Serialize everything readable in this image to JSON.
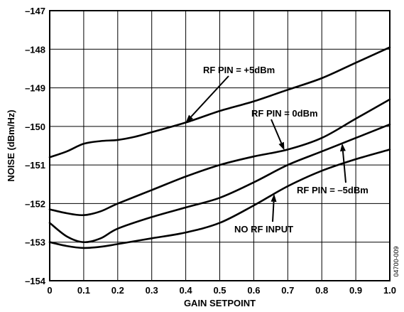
{
  "chart_data": {
    "type": "line",
    "xlabel": "GAIN SETPOINT",
    "ylabel": "NOISE (dBm/Hz)",
    "xlim": [
      0,
      1.0
    ],
    "ylim": [
      -154,
      -147
    ],
    "x_ticks": [
      "0",
      "0.1",
      "0.2",
      "0.3",
      "0.4",
      "0.5",
      "0.6",
      "0.7",
      "0.8",
      "0.9",
      "1.0"
    ],
    "y_ticks": [
      "–154",
      "–153",
      "–152",
      "–151",
      "–150",
      "–149",
      "–148",
      "–147"
    ],
    "grid": true,
    "legend": "none",
    "figure_id": "04700-009",
    "series": [
      {
        "name": "RF PIN = +5dBm",
        "points": [
          [
            0,
            -150.8
          ],
          [
            0.05,
            -150.65
          ],
          [
            0.1,
            -150.45
          ],
          [
            0.15,
            -150.38
          ],
          [
            0.2,
            -150.35
          ],
          [
            0.25,
            -150.27
          ],
          [
            0.3,
            -150.15
          ],
          [
            0.4,
            -149.9
          ],
          [
            0.5,
            -149.6
          ],
          [
            0.6,
            -149.35
          ],
          [
            0.7,
            -149.05
          ],
          [
            0.8,
            -148.75
          ],
          [
            0.9,
            -148.35
          ],
          [
            1.0,
            -147.95
          ]
        ]
      },
      {
        "name": "RF PIN = 0dBm",
        "points": [
          [
            0,
            -152.15
          ],
          [
            0.05,
            -152.25
          ],
          [
            0.1,
            -152.3
          ],
          [
            0.15,
            -152.2
          ],
          [
            0.2,
            -152.0
          ],
          [
            0.3,
            -151.65
          ],
          [
            0.4,
            -151.3
          ],
          [
            0.5,
            -151.0
          ],
          [
            0.6,
            -150.78
          ],
          [
            0.7,
            -150.6
          ],
          [
            0.8,
            -150.3
          ],
          [
            0.9,
            -149.8
          ],
          [
            1.0,
            -149.3
          ]
        ]
      },
      {
        "name": "RF PIN = –5dBm",
        "points": [
          [
            0,
            -152.5
          ],
          [
            0.05,
            -152.85
          ],
          [
            0.1,
            -153.0
          ],
          [
            0.15,
            -152.9
          ],
          [
            0.2,
            -152.65
          ],
          [
            0.3,
            -152.35
          ],
          [
            0.4,
            -152.1
          ],
          [
            0.5,
            -151.85
          ],
          [
            0.6,
            -151.45
          ],
          [
            0.7,
            -151.0
          ],
          [
            0.8,
            -150.65
          ],
          [
            0.9,
            -150.3
          ],
          [
            1.0,
            -149.95
          ]
        ]
      },
      {
        "name": "NO RF INPUT",
        "points": [
          [
            0,
            -153.0
          ],
          [
            0.05,
            -153.1
          ],
          [
            0.1,
            -153.15
          ],
          [
            0.15,
            -153.12
          ],
          [
            0.2,
            -153.05
          ],
          [
            0.3,
            -152.9
          ],
          [
            0.4,
            -152.75
          ],
          [
            0.5,
            -152.5
          ],
          [
            0.6,
            -152.05
          ],
          [
            0.7,
            -151.55
          ],
          [
            0.8,
            -151.15
          ],
          [
            0.9,
            -150.85
          ],
          [
            1.0,
            -150.6
          ]
        ]
      }
    ],
    "annotations": [
      {
        "text": "RF PIN = +5dBm",
        "series": 0,
        "at_x": 0.4
      },
      {
        "text": "RF PIN = 0dBm",
        "series": 1,
        "at_x": 0.69
      },
      {
        "text": "RF PIN = –5dBm",
        "series": 2,
        "at_x": 0.86
      },
      {
        "text": "NO RF INPUT",
        "series": 3,
        "at_x": 0.66
      }
    ]
  }
}
